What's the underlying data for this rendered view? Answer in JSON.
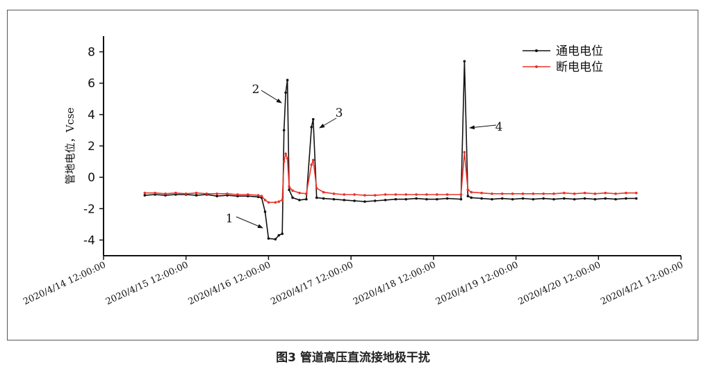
{
  "chart_data": {
    "type": "line",
    "caption": "图3 管道高压直流接地极干扰",
    "ylabel": "管地电位，Vcse",
    "legend": "top-right",
    "xlim": [
      "2020/4/14 12:00:00",
      "2020/4/21 12:00:00"
    ],
    "xticks": [
      "2020/4/14 12:00:00",
      "2020/4/15 12:00:00",
      "2020/4/16 12:00:00",
      "2020/4/17 12:00:00",
      "2020/4/18 12:00:00",
      "2020/4/19 12:00:00",
      "2020/4/20 12:00:00",
      "2020/4/21 12:00:00"
    ],
    "ylim": [
      -5,
      9
    ],
    "yticks": [
      -4,
      -2,
      0,
      2,
      4,
      6,
      8
    ],
    "annotations": [
      "1",
      "2",
      "3",
      "4"
    ],
    "x": [
      "2020/4/15 00:00:00",
      "2020/4/15 03:00:00",
      "2020/4/15 06:00:00",
      "2020/4/15 09:00:00",
      "2020/4/15 12:00:00",
      "2020/4/15 15:00:00",
      "2020/4/15 18:00:00",
      "2020/4/15 21:00:00",
      "2020/4/16 00:00:00",
      "2020/4/16 03:00:00",
      "2020/4/16 06:00:00",
      "2020/4/16 09:00:00",
      "2020/4/16 10:00:00",
      "2020/4/16 11:00:00",
      "2020/4/16 12:00:00",
      "2020/4/16 14:00:00",
      "2020/4/16 15:00:00",
      "2020/4/16 16:00:00",
      "2020/4/16 16:30:00",
      "2020/4/16 17:00:00",
      "2020/4/16 17:30:00",
      "2020/4/16 18:00:00",
      "2020/4/16 19:00:00",
      "2020/4/16 21:00:00",
      "2020/4/16 23:00:00",
      "2020/4/17 00:30:00",
      "2020/4/17 01:00:00",
      "2020/4/17 02:00:00",
      "2020/4/17 04:00:00",
      "2020/4/17 07:00:00",
      "2020/4/17 10:00:00",
      "2020/4/17 13:00:00",
      "2020/4/17 16:00:00",
      "2020/4/17 19:00:00",
      "2020/4/17 22:00:00",
      "2020/4/18 01:00:00",
      "2020/4/18 04:00:00",
      "2020/4/18 07:00:00",
      "2020/4/18 10:00:00",
      "2020/4/18 13:00:00",
      "2020/4/18 16:00:00",
      "2020/4/18 20:00:00",
      "2020/4/18 21:00:00",
      "2020/4/18 22:00:00",
      "2020/4/18 23:00:00",
      "2020/4/19 02:00:00",
      "2020/4/19 05:00:00",
      "2020/4/19 08:00:00",
      "2020/4/19 11:00:00",
      "2020/4/19 14:00:00",
      "2020/4/19 17:00:00",
      "2020/4/19 20:00:00",
      "2020/4/19 23:00:00",
      "2020/4/20 02:00:00",
      "2020/4/20 05:00:00",
      "2020/4/20 08:00:00",
      "2020/4/20 11:00:00",
      "2020/4/20 14:00:00",
      "2020/4/20 17:00:00",
      "2020/4/20 20:00:00",
      "2020/4/20 23:00:00"
    ],
    "series": [
      {
        "name": "通电电位",
        "color": "#111111",
        "values": [
          -1.15,
          -1.1,
          -1.15,
          -1.1,
          -1.1,
          -1.15,
          -1.1,
          -1.2,
          -1.15,
          -1.2,
          -1.2,
          -1.25,
          -1.3,
          -2.2,
          -3.9,
          -3.95,
          -3.7,
          -3.6,
          3.0,
          5.4,
          6.2,
          -0.8,
          -1.3,
          -1.45,
          -1.4,
          3.2,
          3.7,
          -1.3,
          -1.35,
          -1.4,
          -1.45,
          -1.5,
          -1.55,
          -1.5,
          -1.45,
          -1.4,
          -1.4,
          -1.35,
          -1.4,
          -1.4,
          -1.35,
          -1.4,
          7.4,
          -1.2,
          -1.3,
          -1.35,
          -1.4,
          -1.35,
          -1.4,
          -1.35,
          -1.4,
          -1.35,
          -1.4,
          -1.35,
          -1.4,
          -1.35,
          -1.4,
          -1.35,
          -1.4,
          -1.35,
          -1.35
        ]
      },
      {
        "name": "断电电位",
        "color": "#e8332a",
        "values": [
          -1.0,
          -1.0,
          -1.05,
          -1.0,
          -1.05,
          -1.0,
          -1.05,
          -1.05,
          -1.05,
          -1.1,
          -1.1,
          -1.15,
          -1.2,
          -1.45,
          -1.6,
          -1.6,
          -1.55,
          -1.45,
          1.0,
          1.5,
          1.2,
          -0.6,
          -0.85,
          -1.0,
          -1.05,
          0.8,
          1.1,
          -0.7,
          -0.95,
          -1.05,
          -1.1,
          -1.1,
          -1.15,
          -1.15,
          -1.1,
          -1.1,
          -1.1,
          -1.1,
          -1.1,
          -1.1,
          -1.1,
          -1.1,
          1.6,
          -0.8,
          -0.95,
          -1.0,
          -1.05,
          -1.05,
          -1.05,
          -1.05,
          -1.05,
          -1.05,
          -1.05,
          -1.0,
          -1.05,
          -1.0,
          -1.05,
          -1.0,
          -1.05,
          -1.0,
          -1.0
        ]
      }
    ]
  }
}
